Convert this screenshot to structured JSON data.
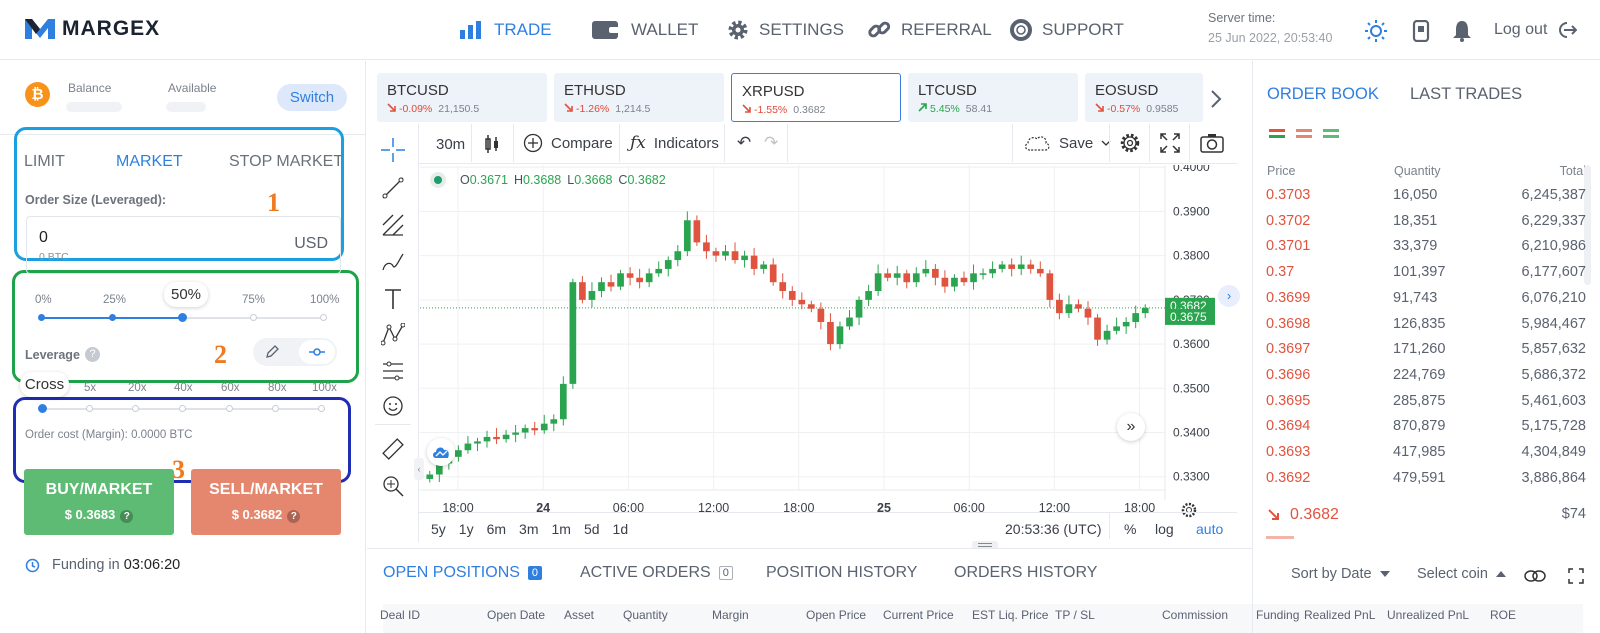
{
  "brand": {
    "name": "MARGEX"
  },
  "nav": [
    {
      "label": "TRADE",
      "icon": "bar-chart-icon"
    },
    {
      "label": "WALLET",
      "icon": "wallet-icon"
    },
    {
      "label": "SETTINGS",
      "icon": "gear-icon"
    },
    {
      "label": "REFERRAL",
      "icon": "link-icon"
    },
    {
      "label": "SUPPORT",
      "icon": "lifebuoy-icon"
    }
  ],
  "server": {
    "label": "Server time:",
    "time": "25 Jun 2022, 20:53:40"
  },
  "logout": "Log out",
  "balance": {
    "balance_label": "Balance",
    "available_label": "Available",
    "switch": "Switch"
  },
  "order_tabs": [
    "LIMIT",
    "MARKET",
    "STOP MARKET"
  ],
  "order_size": {
    "label": "Order Size (Leveraged):",
    "value": "0",
    "sub": "0 BTC",
    "unit": "USD",
    "percents": [
      "0%",
      "25%",
      "50%",
      "75%",
      "100%"
    ],
    "selected": "50%"
  },
  "leverage": {
    "label": "Leverage",
    "options": [
      "Cross",
      "5x",
      "20x",
      "40x",
      "60x",
      "80x",
      "100x"
    ],
    "cost": "Order cost (Margin): 0.0000 BTC"
  },
  "annotations": [
    "1",
    "2",
    "3"
  ],
  "buy": {
    "label": "BUY/MARKET",
    "price": "$ 0.3683"
  },
  "sell": {
    "label": "SELL/MARKET",
    "price": "$ 0.3682"
  },
  "funding": {
    "label": "Funding in",
    "time": "03:06:20"
  },
  "tickers": [
    {
      "name": "BTCUSD",
      "change": "-0.09%",
      "price": "21,150.5",
      "up": false
    },
    {
      "name": "ETHUSD",
      "change": "-1.26%",
      "price": "1,214.5",
      "up": false
    },
    {
      "name": "XRPUSD",
      "change": "-1.55%",
      "price": "0.3682",
      "up": false
    },
    {
      "name": "LTCUSD",
      "change": "5.45%",
      "price": "58.41",
      "up": true
    },
    {
      "name": "EOSUSD",
      "change": "-0.57%",
      "price": "0.9585",
      "up": false
    }
  ],
  "toolbar": {
    "interval": "30m",
    "compare": "Compare",
    "indicators": "Indicators",
    "save": "Save"
  },
  "chart_data": {
    "type": "candlestick",
    "ohlc_label": {
      "o": "0.3671",
      "h": "0.3688",
      "l": "0.3668",
      "c": "0.3682"
    },
    "y_ticks": [
      "0.4000",
      "0.3900",
      "0.3800",
      "0.3700",
      "0.3600",
      "0.3500",
      "0.3400",
      "0.3300"
    ],
    "ylim": [
      0.327,
      0.4005
    ],
    "x_ticks": [
      "18:00",
      "24",
      "06:00",
      "12:00",
      "18:00",
      "25",
      "06:00",
      "12:00",
      "18:00"
    ],
    "price_tags": [
      "0.3682",
      "0.3675"
    ],
    "closes": [
      0.3305,
      0.333,
      0.3345,
      0.336,
      0.3375,
      0.338,
      0.339,
      0.3385,
      0.3395,
      0.34,
      0.341,
      0.3405,
      0.342,
      0.343,
      0.351,
      0.374,
      0.37,
      0.372,
      0.374,
      0.373,
      0.376,
      0.375,
      0.374,
      0.376,
      0.377,
      0.379,
      0.381,
      0.388,
      0.383,
      0.381,
      0.38,
      0.381,
      0.379,
      0.38,
      0.377,
      0.378,
      0.374,
      0.372,
      0.37,
      0.369,
      0.368,
      0.365,
      0.36,
      0.364,
      0.366,
      0.37,
      0.372,
      0.376,
      0.375,
      0.376,
      0.374,
      0.376,
      0.377,
      0.375,
      0.373,
      0.375,
      0.374,
      0.376,
      0.376,
      0.377,
      0.378,
      0.377,
      0.378,
      0.377,
      0.376,
      0.37,
      0.367,
      0.369,
      0.368,
      0.366,
      0.361,
      0.363,
      0.364,
      0.365,
      0.367,
      0.3682
    ]
  },
  "periods": [
    "5y",
    "1y",
    "6m",
    "3m",
    "1m",
    "5d",
    "1d"
  ],
  "clock": "20:53:36 (UTC)",
  "scale": [
    "%",
    "log",
    "auto"
  ],
  "bottom_tabs": [
    {
      "label": "OPEN POSITIONS",
      "count": "0"
    },
    {
      "label": "ACTIVE ORDERS",
      "count": "0"
    },
    {
      "label": "POSITION HISTORY",
      "count": ""
    },
    {
      "label": "ORDERS HISTORY",
      "count": ""
    }
  ],
  "sort": "Sort by Date",
  "select_coin": "Select coin",
  "columns": [
    "Deal ID",
    "Open Date",
    "Asset",
    "Quantity",
    "Margin",
    "Open Price",
    "Current Price",
    "EST Liq. Price",
    "TP / SL",
    "Commission",
    "Funding",
    "Realized PnL",
    "Unrealized PnL",
    "ROE"
  ],
  "orderbook": {
    "tabs": [
      "ORDER BOOK",
      "LAST TRADES"
    ],
    "headers": [
      "Price",
      "Quantity",
      "Total"
    ],
    "rows": [
      [
        "0.3703",
        "16,050",
        "6,245,387"
      ],
      [
        "0.3702",
        "18,351",
        "6,229,337"
      ],
      [
        "0.3701",
        "33,379",
        "6,210,986"
      ],
      [
        "0.37",
        "101,397",
        "6,177,607"
      ],
      [
        "0.3699",
        "91,743",
        "6,076,210"
      ],
      [
        "0.3698",
        "126,835",
        "5,984,467"
      ],
      [
        "0.3697",
        "171,260",
        "5,857,632"
      ],
      [
        "0.3696",
        "224,769",
        "5,686,372"
      ],
      [
        "0.3695",
        "285,875",
        "5,461,603"
      ],
      [
        "0.3694",
        "870,879",
        "5,175,728"
      ],
      [
        "0.3693",
        "417,985",
        "4,304,849"
      ],
      [
        "0.3692",
        "479,591",
        "3,886,864"
      ]
    ],
    "last_price": "0.3682",
    "last_value": "$74"
  },
  "colors": {
    "accent": "#2f7fe0",
    "up": "#2aa44f",
    "down": "#e0533e",
    "buy": "#5dbb73",
    "sell": "#e5866f"
  }
}
